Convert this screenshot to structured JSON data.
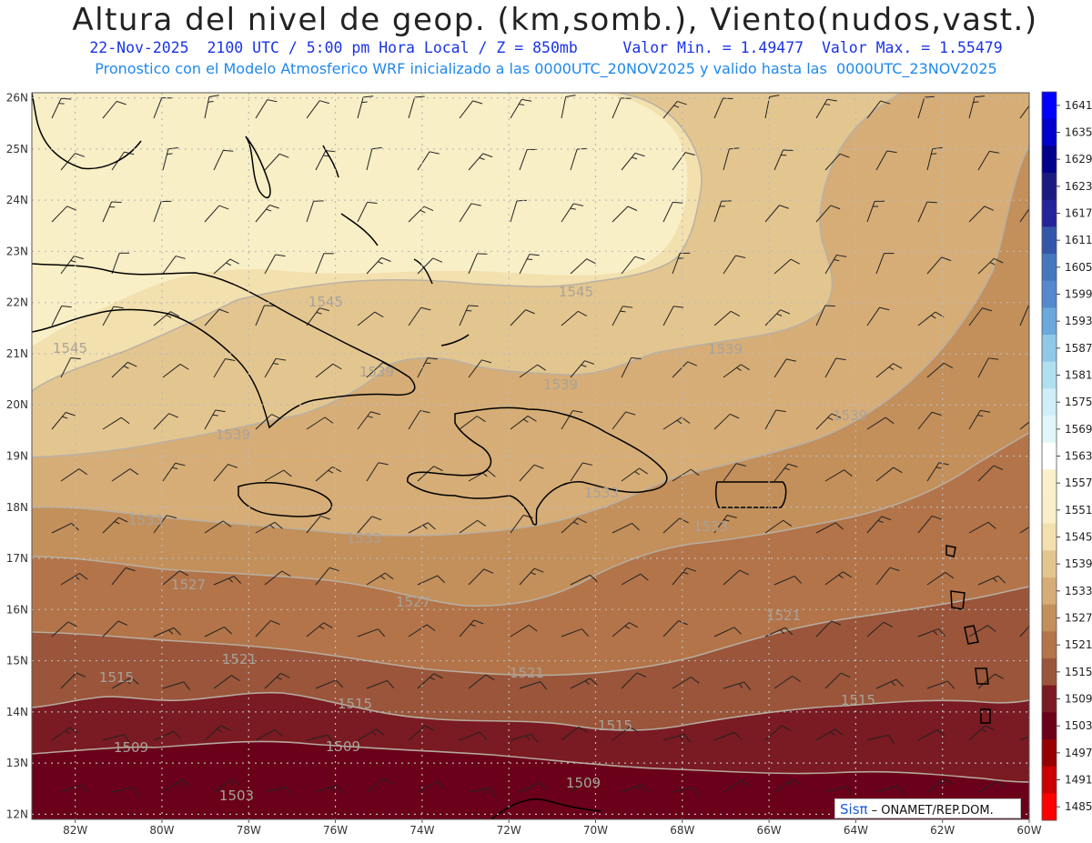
{
  "header": {
    "title": "Altura del nivel de geop. (km,somb.), Viento(nudos,vast.)",
    "subtitle_1": "22-Nov-2025  2100 UTC / 5:00 pm Hora Local / Z = 850mb     Valor Min. = 1.49477  Valor Max. = 1.55479",
    "subtitle_2": "Pronostico con el Modelo Atmosferico WRF inicializado a las 0000UTC_20NOV2025 y valido hasta las  0000UTC_23NOV2025"
  },
  "map": {
    "lon_range": [
      -83.0,
      -60.0
    ],
    "lat_range": [
      11.9,
      26.1
    ],
    "lon_ticks": [
      "82W",
      "80W",
      "78W",
      "76W",
      "74W",
      "72W",
      "70W",
      "68W",
      "66W",
      "64W",
      "62W",
      "60W"
    ],
    "lat_ticks": [
      "26N",
      "25N",
      "24N",
      "23N",
      "22N",
      "21N",
      "20N",
      "19N",
      "18N",
      "17N",
      "16N",
      "15N",
      "14N",
      "13N",
      "12N"
    ],
    "contour_labels": [
      "1545",
      "1545",
      "1545",
      "1539",
      "1539",
      "1539",
      "1539",
      "1539",
      "1533",
      "1533",
      "1533",
      "1533",
      "1527",
      "1527",
      "1521",
      "1521",
      "1521",
      "1515",
      "1515",
      "1515",
      "1515",
      "1509",
      "1509",
      "1509",
      "1503"
    ],
    "wind_note": "barbs 5-10 kt, mostly from the east/northeast"
  },
  "legend": {
    "values": [
      "1641",
      "1635",
      "1629",
      "1623",
      "1617",
      "1611",
      "1605",
      "1599",
      "1593",
      "1587",
      "1581",
      "1575",
      "1569",
      "1563",
      "1557",
      "1551",
      "1545",
      "1539",
      "1533",
      "1527",
      "1521",
      "1515",
      "1509",
      "1503",
      "1497",
      "1491",
      "1485"
    ],
    "colors": [
      "#0000ff",
      "#0000cc",
      "#00008a",
      "#1a1a80",
      "#23239a",
      "#3355aa",
      "#4477bb",
      "#5588cc",
      "#6aa8dd",
      "#8fc8e8",
      "#b0e0f0",
      "#cfeefa",
      "#dff6fb",
      "#ffffff",
      "#fbf1c8",
      "#f9efc6",
      "#f2e0ae",
      "#e3c68f",
      "#d6ad76",
      "#c38f5a",
      "#b37449",
      "#9a553a",
      "#7a1a22",
      "#6a0019",
      "#960000",
      "#cc0000",
      "#ff0000"
    ]
  },
  "credit": {
    "brand": "Sisπ",
    "text": " – ONAMET/REP.DOM."
  }
}
